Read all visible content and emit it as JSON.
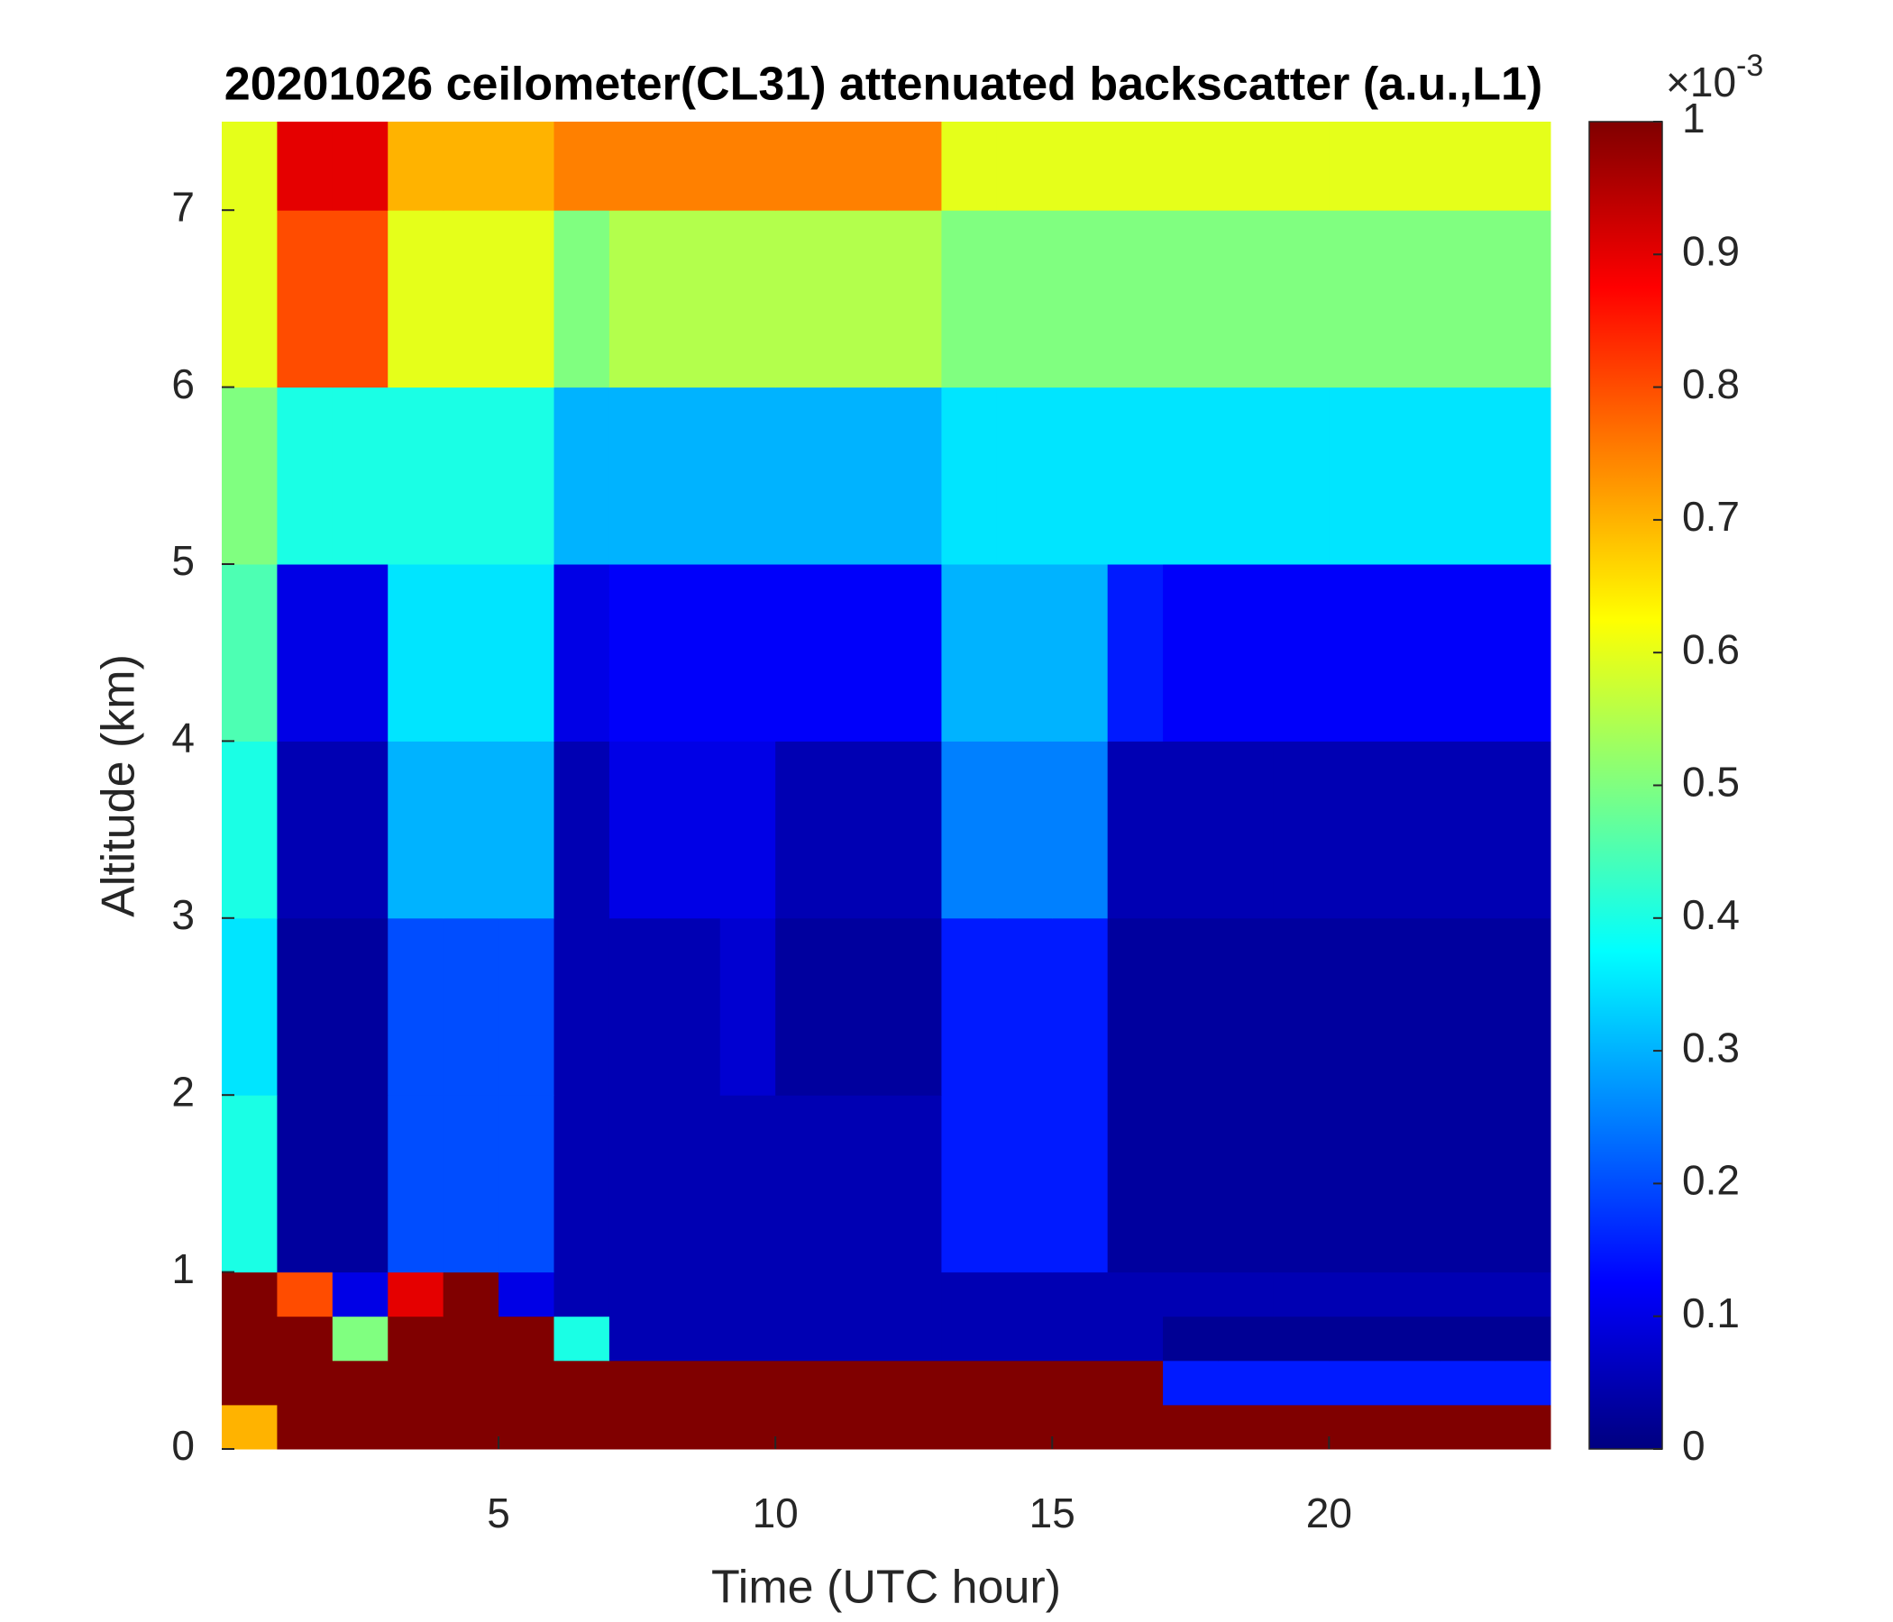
{
  "chart_data": {
    "type": "heatmap",
    "title": "20201026 ceilometer(CL31) attenuated backscatter (a.u.,L1)",
    "xlabel": "Time (UTC hour)",
    "ylabel": "Altitude (km)",
    "x_bins": [
      0,
      1,
      2,
      3,
      4,
      5,
      6,
      7,
      8,
      9,
      10,
      11,
      12,
      13,
      14,
      15,
      16,
      17,
      18,
      19,
      20,
      21,
      22,
      23,
      24
    ],
    "y_bins": [
      0,
      0.25,
      0.5,
      0.75,
      1,
      2,
      3,
      4,
      5,
      6,
      7,
      7.5
    ],
    "values": [
      [
        0.7,
        1,
        1,
        1,
        1,
        1,
        1,
        1,
        1,
        1,
        1,
        1,
        1,
        1,
        1,
        1,
        1,
        1,
        1,
        1,
        1,
        1,
        1,
        1
      ],
      [
        1,
        1,
        1,
        1,
        1,
        1,
        1,
        1,
        1,
        1,
        1,
        1,
        1,
        1,
        1,
        1,
        1,
        0.15,
        0.15,
        0.15,
        0.15,
        0.15,
        0.15,
        0.15
      ],
      [
        1,
        1,
        0.5,
        1,
        1,
        1,
        0.4,
        0.05,
        0.05,
        0.05,
        0.05,
        0.05,
        0.05,
        0.05,
        0.05,
        0.05,
        0.05,
        0.02,
        0.02,
        0.02,
        0.02,
        0.02,
        0.02,
        0.02
      ],
      [
        1,
        0.8,
        0.1,
        0.9,
        1,
        0.1,
        0.05,
        0.05,
        0.05,
        0.05,
        0.05,
        0.05,
        0.05,
        0.05,
        0.05,
        0.05,
        0.05,
        0.05,
        0.05,
        0.05,
        0.05,
        0.05,
        0.05,
        0.05
      ],
      [
        0.4,
        0.03,
        0.03,
        0.2,
        0.2,
        0.2,
        0.05,
        0.05,
        0.05,
        0.05,
        0.05,
        0.05,
        0.05,
        0.15,
        0.15,
        0.15,
        0.03,
        0.03,
        0.03,
        0.03,
        0.03,
        0.03,
        0.03,
        0.03
      ],
      [
        0.35,
        0.03,
        0.03,
        0.2,
        0.2,
        0.2,
        0.05,
        0.05,
        0.05,
        0.08,
        0.03,
        0.03,
        0.03,
        0.15,
        0.15,
        0.15,
        0.03,
        0.03,
        0.03,
        0.03,
        0.03,
        0.03,
        0.03,
        0.03
      ],
      [
        0.4,
        0.05,
        0.05,
        0.3,
        0.3,
        0.3,
        0.05,
        0.1,
        0.1,
        0.1,
        0.05,
        0.05,
        0.05,
        0.25,
        0.25,
        0.25,
        0.05,
        0.05,
        0.05,
        0.05,
        0.05,
        0.05,
        0.05,
        0.05
      ],
      [
        0.45,
        0.1,
        0.1,
        0.35,
        0.35,
        0.35,
        0.1,
        0.12,
        0.12,
        0.12,
        0.12,
        0.12,
        0.12,
        0.3,
        0.3,
        0.3,
        0.15,
        0.12,
        0.12,
        0.12,
        0.12,
        0.12,
        0.12,
        0.12
      ],
      [
        0.5,
        0.4,
        0.4,
        0.4,
        0.4,
        0.4,
        0.3,
        0.3,
        0.3,
        0.3,
        0.3,
        0.3,
        0.3,
        0.35,
        0.35,
        0.35,
        0.35,
        0.35,
        0.35,
        0.35,
        0.35,
        0.35,
        0.35,
        0.35
      ],
      [
        0.6,
        0.8,
        0.8,
        0.6,
        0.6,
        0.6,
        0.5,
        0.55,
        0.55,
        0.55,
        0.55,
        0.55,
        0.55,
        0.5,
        0.5,
        0.5,
        0.5,
        0.5,
        0.5,
        0.5,
        0.5,
        0.5,
        0.5,
        0.5
      ],
      [
        0.6,
        0.9,
        0.9,
        0.7,
        0.7,
        0.7,
        0.75,
        0.75,
        0.75,
        0.75,
        0.75,
        0.75,
        0.75,
        0.6,
        0.6,
        0.6,
        0.6,
        0.6,
        0.6,
        0.6,
        0.6,
        0.6,
        0.6,
        0.6
      ]
    ],
    "xlim": [
      0,
      24
    ],
    "xticks": [
      5,
      10,
      15,
      20
    ],
    "ylim": [
      0,
      7.5
    ],
    "yticks": [
      0,
      1,
      2,
      3,
      4,
      5,
      6,
      7
    ],
    "colormap": "jet",
    "clim": [
      0,
      1
    ],
    "cticks": [
      0,
      0.1,
      0.2,
      0.3,
      0.4,
      0.5,
      0.6,
      0.7,
      0.8,
      0.9,
      1
    ],
    "colorbar_scale_label": "×10",
    "colorbar_scale_exponent": "-3"
  }
}
